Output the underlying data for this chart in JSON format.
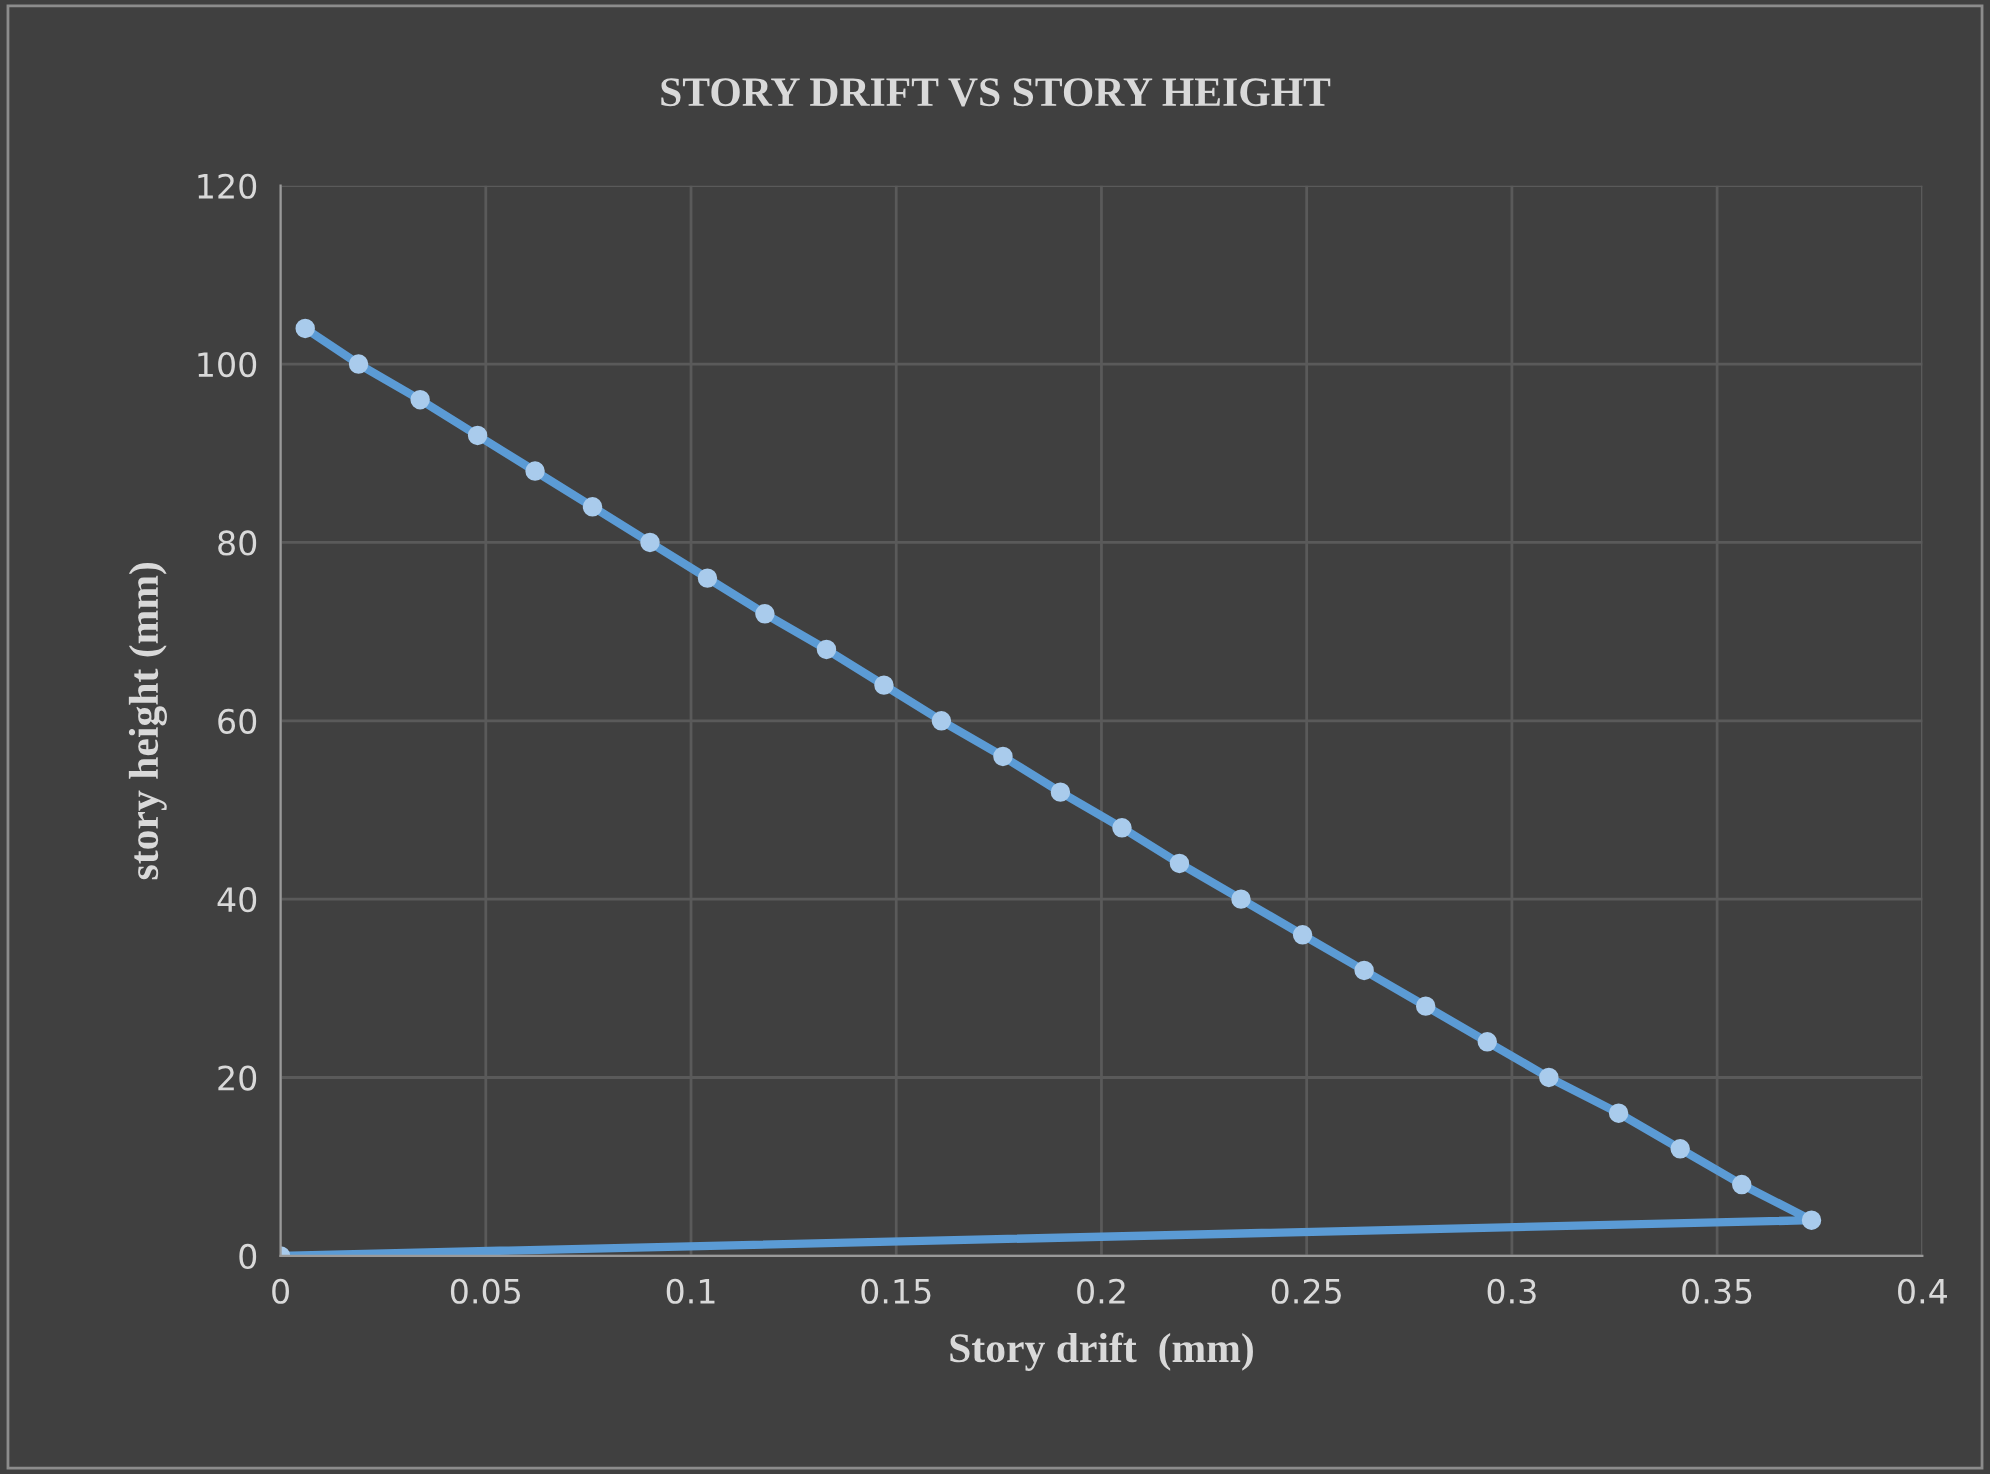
{
  "chart_data": {
    "type": "line",
    "title": "STORY DRIFT VS STORY HEIGHT",
    "xlabel": "Story drift  (mm)",
    "ylabel": "story height (mm)",
    "series": [
      {
        "color": "#5b9bd5",
        "x": [
          0,
          0.373,
          0.356,
          0.341,
          0.326,
          0.309,
          0.294,
          0.279,
          0.264,
          0.249,
          0.234,
          0.219,
          0.205,
          0.19,
          0.176,
          0.161,
          0.147,
          0.133,
          0.118,
          0.104,
          0.09,
          0.076,
          0.062,
          0.048,
          0.034,
          0.019,
          0.006
        ],
        "values": [
          0,
          4,
          8,
          12,
          16,
          20,
          24,
          28,
          32,
          36,
          40,
          44,
          48,
          52,
          56,
          60,
          64,
          68,
          72,
          76,
          80,
          84,
          88,
          92,
          96,
          100,
          104
        ]
      }
    ],
    "xlim": [
      0,
      0.4
    ],
    "xticks": [
      0,
      0.05,
      0.1,
      0.15,
      0.2,
      0.25,
      0.3,
      0.35,
      0.4
    ],
    "ylim": [
      0,
      120
    ],
    "yticks": [
      0,
      20,
      40,
      60,
      80,
      100,
      120
    ],
    "grid": true,
    "marker": "circle",
    "line_style": "solid"
  }
}
